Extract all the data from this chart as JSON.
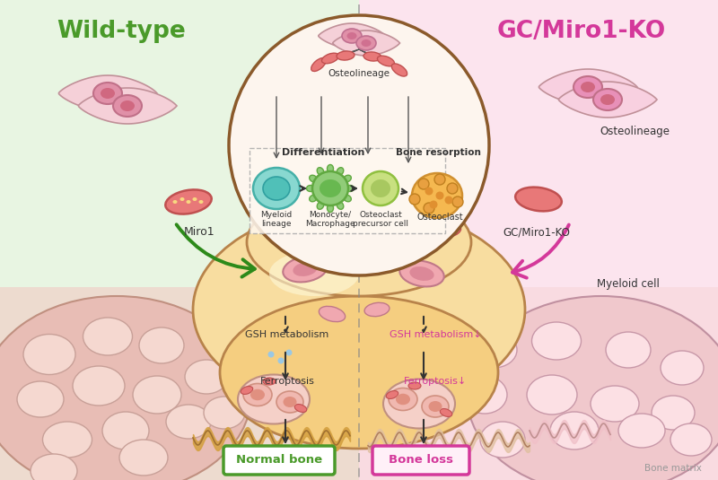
{
  "title_left": "Wild-type",
  "title_right": "GC/Miro1-KO",
  "title_left_color": "#4a9a2a",
  "title_right_color": "#d4389a",
  "bg_left_top": "#e8f5e2",
  "bg_left_bottom": "#e8c8c0",
  "bg_right_top": "#fce4ee",
  "bg_right_bottom": "#f0c8d0",
  "osteoclast_body_color": "#f5d898",
  "osteoclast_edge_color": "#b8834a",
  "bone_left_color": "#e8c0b8",
  "bone_right_color": "#f0c8cc",
  "bone_pore_left": "#f5ddd8",
  "bone_pore_right": "#fce0e4",
  "circle_fill": "#fdf5ee",
  "circle_edge": "#8b5a2b",
  "diff_box_edge": "#999999",
  "cell_blue": "#88d8d0",
  "cell_green": "#90cc78",
  "cell_lgeen": "#b8dc80",
  "cell_orange": "#f0a848",
  "mito_color": "#e06868",
  "mito_edge": "#c04040",
  "nucleus_fill": "#e8a0b0",
  "nucleus_edge": "#c07888",
  "label_osteolineage": "Osteolineage",
  "label_differentiation": "Differentiation",
  "label_bone_resorption": "Bone resorption",
  "label_myeloid": "Myeloid\nlineage",
  "label_monocyte": "Monocyte/\nMacrophage",
  "label_osteoclast_precursor": "Osteoclast\nprecursor cell",
  "label_osteoclast": "Osteoclast",
  "label_miro1": "Miro1",
  "label_gcmiro1ko": "GC/Miro1-KO",
  "label_osteolineage_right": "Osteolineage",
  "label_myeloid_cell": "Myeloid cell",
  "label_gsh_left": "GSH metabolism",
  "label_gsh_right": "GSH metabolism↓",
  "label_ferroptosis_left": "Ferroptosis",
  "label_ferroptosis_right": "Ferroptosis↓",
  "label_normal_bone": "Normal bone",
  "label_bone_loss": "Bone loss",
  "label_bone_matrix": "Bone matrix",
  "green_arrow_color": "#2d8a1a",
  "pink_arrow_color": "#d4389a",
  "normal_bone_box_color": "#4a9a2a",
  "bone_loss_box_color": "#d4389a",
  "ruffled_color": "#d4a040",
  "ruffled_edge": "#a07030",
  "white_highlight": "#ffffff",
  "ferroptosis_cell_fill": "#f0b0b8",
  "ferroptosis_cell_edge": "#c08090"
}
